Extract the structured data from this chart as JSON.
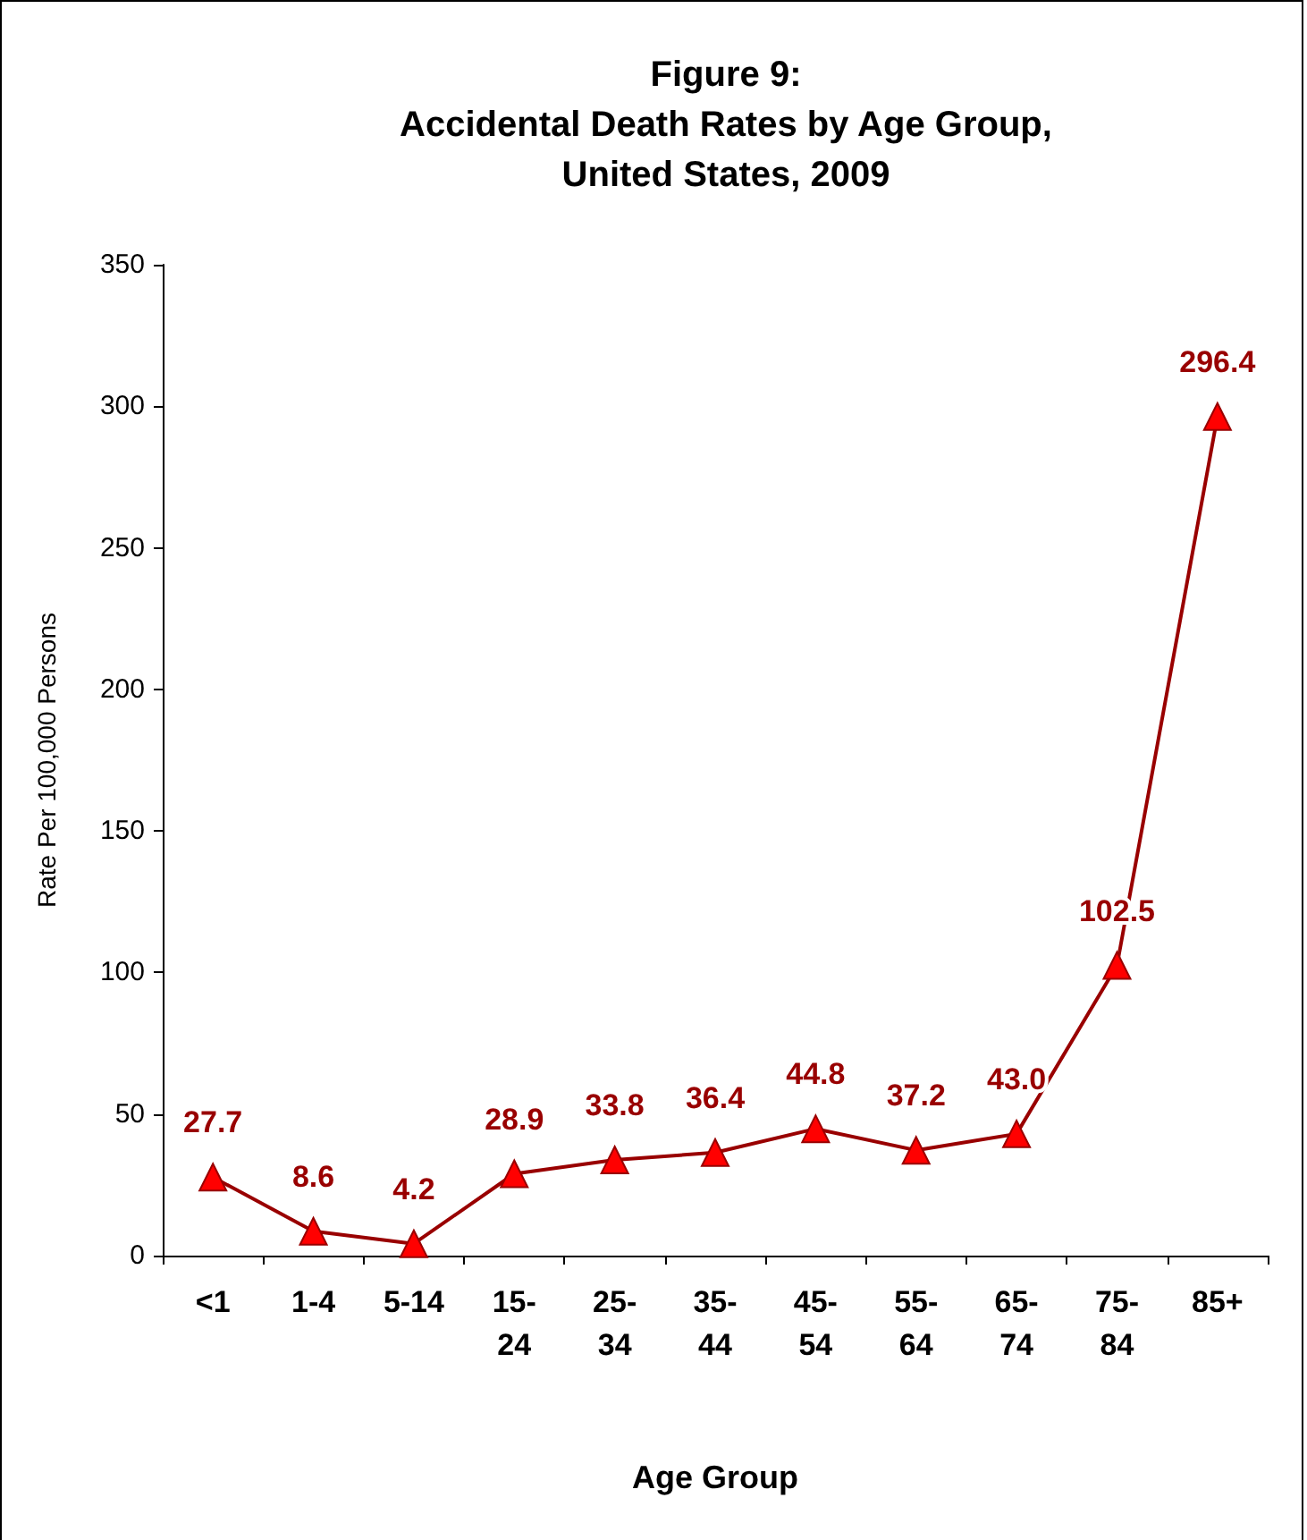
{
  "chart_data": {
    "type": "line",
    "title": "Figure 9:\nAccidental Death Rates by Age Group,\nUnited States, 2009",
    "xlabel": "Age Group",
    "ylabel": "Rate Per 100,000 Persons",
    "categories": [
      "<1",
      "1-4",
      "5-14",
      "15-\n24",
      "25-\n34",
      "35-\n44",
      "45-\n54",
      "55-\n64",
      "65-\n74",
      "75-\n84",
      "85+"
    ],
    "series": [
      {
        "color": "#990000",
        "values": [
          27.7,
          8.6,
          4.2,
          28.9,
          33.8,
          36.4,
          44.8,
          37.2,
          43.0,
          102.5,
          296.4
        ],
        "value_labels": [
          "27.7",
          "8.6",
          "4.2",
          "28.9",
          "33.8",
          "36.4",
          "44.8",
          "37.2",
          "43.0",
          "102.5",
          "296.4"
        ]
      }
    ],
    "ylim": [
      0,
      350
    ],
    "yticks": [
      0,
      50,
      100,
      150,
      200,
      250,
      300,
      350
    ],
    "grid": false,
    "marker": "triangle",
    "line_style": "solid"
  }
}
